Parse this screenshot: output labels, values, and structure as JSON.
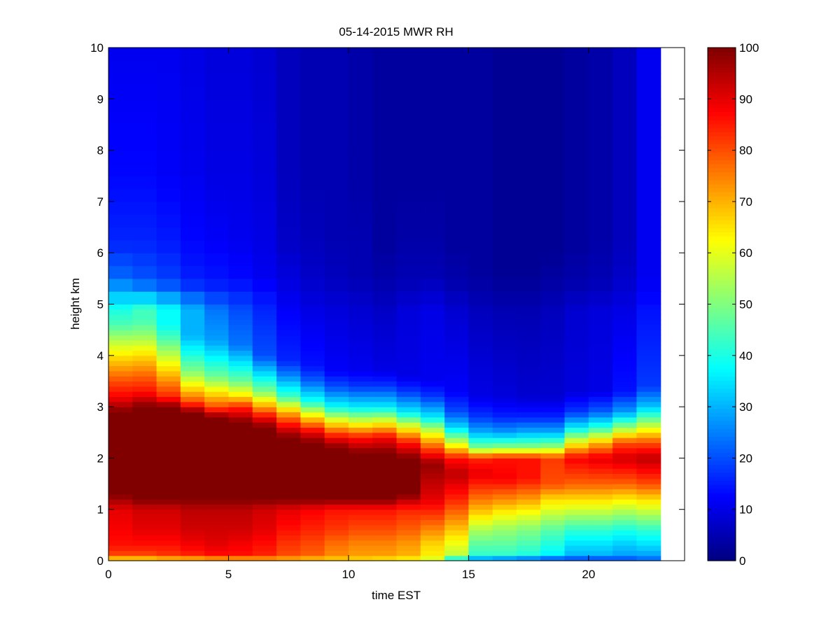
{
  "chart_data": {
    "type": "heatmap",
    "title": "05-14-2015 MWR RH",
    "xlabel": "time EST",
    "ylabel": "height km",
    "xlim": [
      0,
      24
    ],
    "ylim": [
      0,
      10
    ],
    "x_ticks": [
      0,
      5,
      10,
      15,
      20
    ],
    "y_ticks": [
      0,
      1,
      2,
      3,
      4,
      5,
      6,
      7,
      8,
      9,
      10
    ],
    "colorbar": {
      "colormap": "jet",
      "clim": [
        0,
        100
      ],
      "ticks": [
        0,
        10,
        20,
        30,
        40,
        50,
        60,
        70,
        80,
        90,
        100
      ]
    },
    "x_bin_width_hours": 1,
    "x_centers": [
      0.5,
      1.5,
      2.5,
      3.5,
      4.5,
      5.5,
      6.5,
      7.5,
      8.5,
      9.5,
      10.5,
      11.5,
      12.5,
      13.5,
      14.5,
      15.5,
      16.5,
      17.5,
      18.5,
      19.5,
      20.5,
      21.5,
      22.5
    ],
    "height_bin_edges_km": [
      0,
      0.1,
      0.2,
      0.3,
      0.4,
      0.5,
      0.6,
      0.7,
      0.8,
      0.9,
      1.0,
      1.1,
      1.2,
      1.3,
      1.4,
      1.5,
      1.6,
      1.7,
      1.8,
      1.9,
      2.0,
      2.1,
      2.2,
      2.3,
      2.4,
      2.5,
      2.6,
      2.7,
      2.8,
      2.9,
      3.0,
      3.1,
      3.2,
      3.3,
      3.4,
      3.5,
      3.6,
      3.7,
      3.8,
      3.9,
      4.0,
      4.1,
      4.2,
      4.3,
      4.4,
      4.5,
      4.6,
      4.7,
      4.8,
      4.9,
      5.0,
      5.25,
      5.5,
      5.75,
      6.0,
      6.25,
      6.5,
      6.75,
      7.0,
      7.25,
      7.5,
      7.75,
      8.0,
      8.25,
      8.5,
      8.75,
      9.0,
      9.25,
      9.5,
      9.75
    ],
    "profiles": {
      "top_heights_km": [
        4.9,
        5.3,
        5.6,
        6.2,
        7.5,
        10
      ],
      "top_values": {
        "0.5": [
          40,
          28,
          22,
          16,
          13,
          11
        ],
        "1.5": [
          44,
          25,
          20,
          16,
          13,
          11
        ],
        "2.5": [
          38,
          22,
          18,
          15,
          12,
          11
        ],
        "3.5": [
          30,
          18,
          15,
          13,
          11,
          10
        ],
        "4.5": [
          24,
          16,
          14,
          12,
          10,
          9
        ],
        "5.5": [
          20,
          15,
          13,
          11,
          10,
          9
        ],
        "6.5": [
          16,
          13,
          11,
          10,
          9,
          8
        ],
        "7.5": [
          12,
          10,
          9,
          7,
          6,
          6
        ],
        "8.5": [
          10,
          8,
          7,
          6,
          5,
          5
        ],
        "9.5": [
          9,
          7,
          6,
          5,
          5,
          5
        ],
        "10.5": [
          8,
          6,
          5,
          5,
          4,
          4
        ],
        "11.5": [
          7,
          5,
          4,
          3,
          3,
          3
        ],
        "12.5": [
          9,
          6,
          5,
          4,
          3,
          3
        ],
        "13.5": [
          10,
          7,
          5,
          4,
          3,
          3
        ],
        "14.5": [
          8,
          5,
          4,
          3,
          3,
          3
        ],
        "15.5": [
          6,
          4,
          3,
          3,
          3,
          3
        ],
        "16.5": [
          5,
          3,
          2,
          2,
          2,
          2
        ],
        "17.5": [
          5,
          3,
          2,
          2,
          2,
          2
        ],
        "18.5": [
          6,
          4,
          3,
          2,
          2,
          2
        ],
        "19.5": [
          8,
          5,
          4,
          3,
          3,
          3
        ],
        "20.5": [
          9,
          6,
          5,
          4,
          4,
          4
        ],
        "21.5": [
          10,
          8,
          7,
          6,
          6,
          6
        ],
        "22.5": [
          14,
          12,
          11,
          11,
          11,
          11
        ]
      },
      "lower": {
        "0.5": {
          "h": [
            0,
            0.1,
            0.3,
            0.6,
            1.0,
            1.3,
            2.9,
            3.2,
            3.5,
            3.9,
            4.3,
            4.6
          ],
          "v": [
            60,
            80,
            86,
            88,
            90,
            100,
            100,
            88,
            80,
            68,
            55,
            45
          ]
        },
        "1.5": {
          "h": [
            0,
            0.1,
            0.3,
            0.6,
            1.0,
            1.2,
            3.0,
            3.3,
            3.6,
            4.0,
            4.4,
            4.7
          ],
          "v": [
            60,
            80,
            86,
            90,
            92,
            100,
            100,
            86,
            78,
            66,
            52,
            44
          ]
        },
        "2.5": {
          "h": [
            0,
            0.1,
            0.3,
            0.6,
            1.0,
            1.2,
            3.0,
            3.2,
            3.5,
            3.9,
            4.3,
            4.6
          ],
          "v": [
            62,
            82,
            86,
            90,
            92,
            100,
            100,
            84,
            74,
            60,
            46,
            38
          ]
        },
        "3.5": {
          "h": [
            0,
            0.1,
            0.3,
            0.6,
            1.0,
            1.2,
            2.9,
            3.1,
            3.4,
            3.7,
            4.1,
            4.4
          ],
          "v": [
            62,
            84,
            88,
            92,
            94,
            100,
            100,
            80,
            64,
            50,
            38,
            30
          ]
        },
        "4.5": {
          "h": [
            0,
            0.1,
            0.3,
            0.6,
            1.0,
            1.2,
            2.8,
            3.0,
            3.3,
            3.6,
            4.0,
            4.3
          ],
          "v": [
            64,
            86,
            90,
            92,
            94,
            100,
            100,
            80,
            64,
            48,
            36,
            28
          ]
        },
        "5.5": {
          "h": [
            0,
            0.1,
            0.3,
            0.6,
            1.0,
            1.2,
            2.7,
            3.0,
            3.2,
            3.5,
            3.9,
            4.2
          ],
          "v": [
            64,
            86,
            88,
            92,
            94,
            100,
            100,
            84,
            66,
            48,
            34,
            24
          ]
        },
        "6.5": {
          "h": [
            0,
            0.1,
            0.3,
            0.6,
            1.0,
            1.2,
            2.6,
            2.8,
            3.0,
            3.3,
            3.7,
            4.0
          ],
          "v": [
            66,
            84,
            86,
            90,
            92,
            100,
            100,
            88,
            72,
            50,
            32,
            20
          ]
        },
        "7.5": {
          "h": [
            0,
            0.1,
            0.3,
            0.6,
            1.0,
            1.2,
            2.4,
            2.6,
            2.9,
            3.2,
            3.6,
            3.9
          ],
          "v": [
            66,
            80,
            82,
            86,
            90,
            100,
            100,
            90,
            70,
            44,
            26,
            16
          ]
        },
        "8.5": {
          "h": [
            0,
            0.1,
            0.3,
            0.6,
            1.0,
            1.2,
            2.3,
            2.5,
            2.8,
            3.1,
            3.5,
            3.8
          ],
          "v": [
            64,
            78,
            80,
            84,
            88,
            100,
            100,
            90,
            66,
            40,
            22,
            14
          ]
        },
        "9.5": {
          "h": [
            0,
            0.1,
            0.3,
            0.6,
            1.0,
            1.2,
            2.2,
            2.4,
            2.7,
            3.0,
            3.4,
            3.7
          ],
          "v": [
            64,
            74,
            76,
            82,
            86,
            100,
            100,
            88,
            64,
            38,
            20,
            12
          ]
        },
        "10.5": {
          "h": [
            0,
            0.1,
            0.3,
            0.6,
            1.0,
            1.2,
            2.1,
            2.4,
            2.7,
            3.0,
            3.4,
            3.7
          ],
          "v": [
            64,
            72,
            74,
            80,
            86,
            100,
            100,
            86,
            60,
            36,
            18,
            11
          ]
        },
        "11.5": {
          "h": [
            0,
            0.1,
            0.3,
            0.6,
            1.0,
            1.2,
            2.1,
            2.4,
            2.7,
            3.0,
            3.4,
            3.7
          ],
          "v": [
            62,
            72,
            74,
            80,
            86,
            100,
            100,
            88,
            62,
            36,
            18,
            10
          ]
        },
        "12.5": {
          "h": [
            0,
            0.1,
            0.3,
            0.6,
            1.0,
            1.3,
            2.0,
            2.3,
            2.6,
            2.9,
            3.3,
            3.6
          ],
          "v": [
            60,
            70,
            72,
            78,
            84,
            100,
            100,
            86,
            62,
            36,
            18,
            10
          ]
        },
        "13.5": {
          "h": [
            0,
            0.1,
            0.3,
            0.6,
            0.9,
            1.2,
            1.9,
            2.2,
            2.5,
            2.8,
            3.2,
            3.5
          ],
          "v": [
            56,
            64,
            66,
            74,
            82,
            90,
            98,
            80,
            60,
            36,
            18,
            11
          ]
        },
        "14.5": {
          "h": [
            0,
            0.1,
            0.3,
            0.6,
            0.9,
            1.2,
            1.7,
            2.0,
            2.3,
            2.6,
            2.9,
            3.3
          ],
          "v": [
            30,
            56,
            60,
            68,
            76,
            84,
            94,
            86,
            58,
            34,
            20,
            12
          ]
        },
        "15.5": {
          "h": [
            0,
            0.1,
            0.3,
            0.6,
            0.9,
            1.2,
            1.7,
            2.0,
            2.2,
            2.5,
            2.8,
            3.2
          ],
          "v": [
            20,
            42,
            46,
            54,
            66,
            76,
            90,
            84,
            50,
            30,
            18,
            10
          ]
        },
        "16.5": {
          "h": [
            0,
            0.1,
            0.3,
            0.6,
            0.9,
            1.2,
            1.6,
            2.0,
            2.2,
            2.5,
            2.8,
            3.2
          ],
          "v": [
            16,
            42,
            46,
            52,
            62,
            74,
            88,
            86,
            52,
            28,
            16,
            9
          ]
        },
        "17.5": {
          "h": [
            0,
            0.1,
            0.3,
            0.6,
            0.9,
            1.2,
            1.6,
            2.0,
            2.2,
            2.5,
            2.8,
            3.2
          ],
          "v": [
            14,
            40,
            44,
            50,
            60,
            72,
            86,
            86,
            52,
            30,
            16,
            8
          ]
        },
        "18.5": {
          "h": [
            0,
            0.1,
            0.3,
            0.6,
            0.9,
            1.2,
            1.5,
            2.0,
            2.2,
            2.5,
            2.8,
            3.2
          ],
          "v": [
            12,
            36,
            40,
            46,
            56,
            66,
            80,
            82,
            54,
            30,
            16,
            8
          ]
        },
        "19.5": {
          "h": [
            0,
            0.1,
            0.3,
            0.6,
            0.9,
            1.2,
            1.5,
            2.0,
            2.3,
            2.6,
            2.9,
            3.3
          ],
          "v": [
            14,
            30,
            34,
            42,
            54,
            66,
            78,
            88,
            62,
            36,
            18,
            9
          ]
        },
        "20.5": {
          "h": [
            0,
            0.1,
            0.3,
            0.6,
            0.9,
            1.2,
            1.5,
            2.0,
            2.3,
            2.6,
            2.9,
            3.3
          ],
          "v": [
            14,
            30,
            34,
            42,
            54,
            66,
            78,
            90,
            70,
            42,
            22,
            10
          ]
        },
        "21.5": {
          "h": [
            0,
            0.1,
            0.3,
            0.6,
            0.9,
            1.2,
            1.5,
            2.0,
            2.3,
            2.6,
            2.9,
            3.3
          ],
          "v": [
            16,
            28,
            32,
            40,
            52,
            64,
            78,
            92,
            80,
            52,
            28,
            14
          ]
        },
        "22.5": {
          "h": [
            0,
            0.1,
            0.3,
            0.6,
            0.9,
            1.2,
            1.5,
            2.0,
            2.3,
            2.7,
            3.0,
            3.4
          ],
          "v": [
            20,
            28,
            34,
            42,
            54,
            66,
            80,
            94,
            80,
            52,
            32,
            18
          ]
        }
      }
    }
  }
}
